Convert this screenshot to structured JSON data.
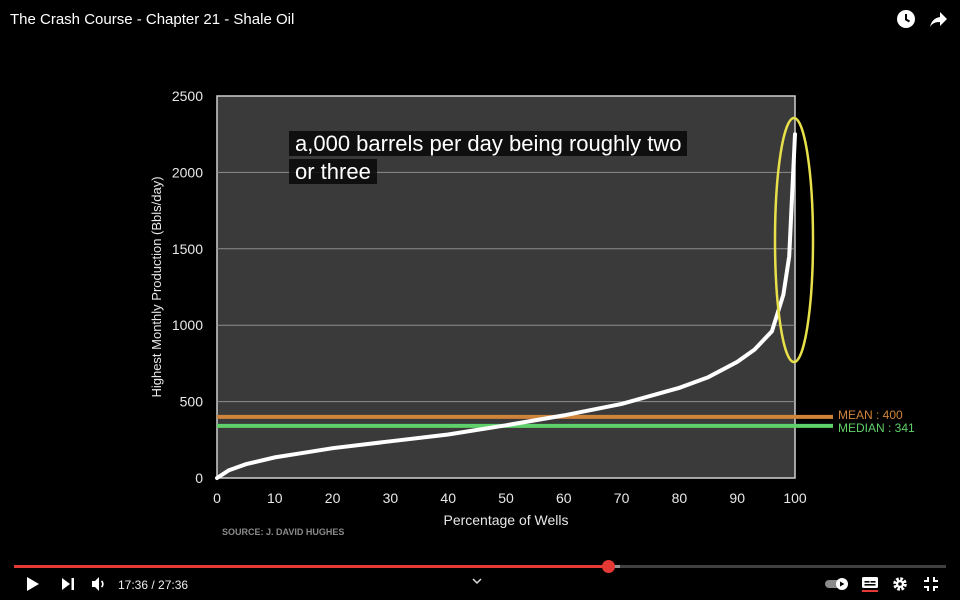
{
  "video": {
    "title": "The Crash Course - Chapter 21 - Shale Oil",
    "caption_line1": "a,000 barrels per day being roughly two",
    "caption_line2": "or three",
    "current_time": "17:36",
    "duration": "27:36",
    "time_display": "17:36 / 27:36",
    "progress_played": 0.6377,
    "progress_loaded": 0.65,
    "icons": [
      "watch-later-icon",
      "share-icon",
      "play-icon",
      "next-icon",
      "volume-icon",
      "chevron-down-icon",
      "autoplay-toggle-icon",
      "captions-icon",
      "settings-icon",
      "exit-fullscreen-icon"
    ]
  },
  "chart_data": {
    "type": "line",
    "xlabel": "Percentage of Wells",
    "ylabel": "Highest Monthly Production (Bbls/day)",
    "xlim": [
      0,
      100
    ],
    "ylim": [
      0,
      2500
    ],
    "x_ticks": [
      0,
      10,
      20,
      30,
      40,
      50,
      60,
      70,
      80,
      90,
      100
    ],
    "y_ticks": [
      0,
      500,
      1000,
      1500,
      2000,
      2500
    ],
    "grid": true,
    "source": "SOURCE: J. DAVID HUGHES",
    "series": [
      {
        "color": "#ffffff",
        "x": [
          0,
          2,
          5,
          10,
          15,
          20,
          30,
          40,
          50,
          60,
          70,
          80,
          85,
          90,
          93,
          96,
          98,
          99,
          100
        ],
        "y": [
          0,
          50,
          90,
          135,
          165,
          195,
          240,
          285,
          345,
          410,
          485,
          590,
          660,
          760,
          840,
          960,
          1200,
          1450,
          2250
        ]
      }
    ],
    "reference_lines": [
      {
        "label": "MEAN : 400",
        "value": 400,
        "color": "#d0843a"
      },
      {
        "label": "MEDIAN : 341",
        "value": 341,
        "color": "#5fd06a"
      }
    ],
    "highlight": {
      "shape": "ellipse",
      "color": "#e8e04a"
    }
  }
}
